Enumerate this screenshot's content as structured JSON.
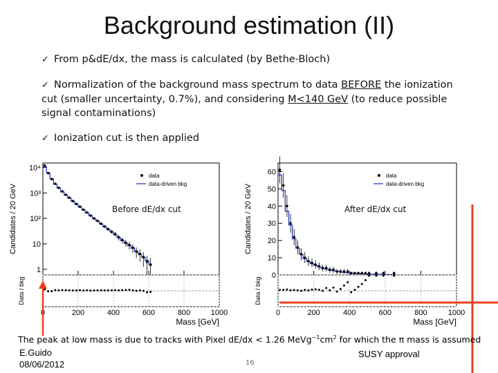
{
  "slide": {
    "title": "Background estimation (II)",
    "bullet_mark": "✓",
    "bullet1": "From p&dE/dx, the mass is calculated (by Bethe-Bloch)",
    "bullet2_pre": "Normalization of the background mass spectrum to data ",
    "bullet2_u1": "BEFORE",
    "bullet2_mid": " the ionization cut (smaller uncertainty, 0.7%), and considering ",
    "bullet2_u2": "M<140 GeV",
    "bullet2_post": " (to reduce possible signal contaminations)",
    "bullet3": "Ionization cut is then applied",
    "bottom_pre": "The peak at low mass is due to tracks with Pixel dE/dx < 1.26 MeVg",
    "bottom_sup1": "−1",
    "bottom_mid": "cm",
    "bottom_sup2": "2",
    "bottom_post": " for which the π mass is assumed",
    "author": "E.Guido",
    "date": "08/06/2012",
    "approval": "SUSY approval",
    "page": "16",
    "accent_color": "#e8401c"
  },
  "chart_data": [
    {
      "type": "line",
      "panel_label": "Before dE/dx cut",
      "ylabel": "Candidates / 20 GeV",
      "ratio_ylabel": "Data / bkg",
      "xlabel": "Mass [GeV]",
      "yscale": "log",
      "ylim": [
        0.6,
        15000
      ],
      "xlim": [
        0,
        1000
      ],
      "x_ticks": [
        "0",
        "200",
        "400",
        "600",
        "800",
        "1000"
      ],
      "y_ticks": [
        "1",
        "10",
        "10²",
        "10³",
        "10⁴"
      ],
      "legend": [
        "data",
        "data-driven bkg"
      ],
      "legend_position": "top-right",
      "series": [
        {
          "name": "data",
          "x": [
            10,
            30,
            50,
            70,
            90,
            110,
            130,
            150,
            170,
            190,
            210,
            230,
            250,
            270,
            290,
            310,
            330,
            350,
            370,
            390,
            410,
            430,
            450,
            470,
            490,
            510,
            530,
            550,
            570,
            590,
            610
          ],
          "values": [
            12000,
            6000,
            3500,
            2300,
            1600,
            1150,
            850,
            650,
            480,
            370,
            290,
            220,
            170,
            130,
            100,
            80,
            62,
            48,
            38,
            30,
            24,
            18,
            14,
            11,
            9,
            7,
            5,
            4,
            3,
            2,
            1.5
          ]
        },
        {
          "name": "data-driven bkg",
          "x": [
            10,
            30,
            50,
            70,
            90,
            110,
            130,
            150,
            170,
            190,
            210,
            230,
            250,
            270,
            290,
            310,
            330,
            350,
            370,
            390,
            410,
            430,
            450,
            470,
            490,
            510,
            530,
            550,
            570,
            590,
            610
          ],
          "values": [
            11000,
            6200,
            3600,
            2200,
            1550,
            1100,
            820,
            630,
            470,
            360,
            280,
            215,
            165,
            128,
            98,
            78,
            60,
            47,
            37,
            29,
            23,
            17.5,
            13.5,
            10.5,
            8.5,
            6.8,
            5,
            3.9,
            3,
            2.2,
            1.6
          ]
        }
      ],
      "ratio_ylim": [
        0,
        2
      ],
      "ratio_ticks": [
        "0",
        "1",
        "2"
      ]
    },
    {
      "type": "line",
      "panel_label": "After dE/dx cut",
      "ylabel": "Candidates / 20 GeV",
      "ratio_ylabel": "Data / bkg",
      "xlabel": "Mass [GeV]",
      "yscale": "linear",
      "ylim": [
        0,
        65
      ],
      "xlim": [
        0,
        1000
      ],
      "x_ticks": [
        "0",
        "200",
        "400",
        "600",
        "800",
        "1000"
      ],
      "y_ticks": [
        "0",
        "10",
        "20",
        "30",
        "40",
        "50",
        "60"
      ],
      "legend": [
        "data",
        "data-driven bkg"
      ],
      "legend_position": "top-right",
      "series": [
        {
          "name": "data",
          "x": [
            10,
            30,
            50,
            70,
            90,
            110,
            130,
            150,
            170,
            190,
            210,
            230,
            250,
            270,
            290,
            310,
            330,
            350,
            370,
            390,
            410,
            430,
            450,
            470,
            490,
            510,
            530,
            550,
            570,
            590,
            610,
            630,
            650
          ],
          "values": [
            61,
            52,
            40,
            30,
            22,
            16,
            12,
            10,
            8,
            7,
            6,
            5,
            4,
            4,
            3,
            3,
            2,
            2,
            2,
            2,
            1,
            1,
            1,
            1,
            1,
            1,
            0,
            1,
            0,
            1,
            0,
            0,
            1
          ]
        },
        {
          "name": "data-driven bkg",
          "x": [
            10,
            30,
            50,
            70,
            90,
            110,
            130,
            150,
            170,
            190,
            210,
            230,
            250,
            270,
            290,
            310,
            330,
            350,
            370,
            390,
            410,
            430,
            450,
            470,
            490,
            510,
            530,
            550,
            570,
            590,
            610,
            630,
            650
          ],
          "values": [
            58,
            49,
            37,
            29,
            21,
            15.5,
            12,
            9.5,
            7.8,
            6.5,
            5.5,
            4.7,
            4,
            3.4,
            2.9,
            2.5,
            2.1,
            1.8,
            1.5,
            1.3,
            1.1,
            0.95,
            0.8,
            0.7,
            0.6,
            0.5,
            0.45,
            0.4,
            0.35,
            0.3,
            0.25,
            0.2,
            0.18
          ]
        }
      ],
      "ratio_ylim": [
        0,
        2
      ],
      "ratio_ticks": [
        "0",
        "1",
        "2"
      ]
    }
  ]
}
